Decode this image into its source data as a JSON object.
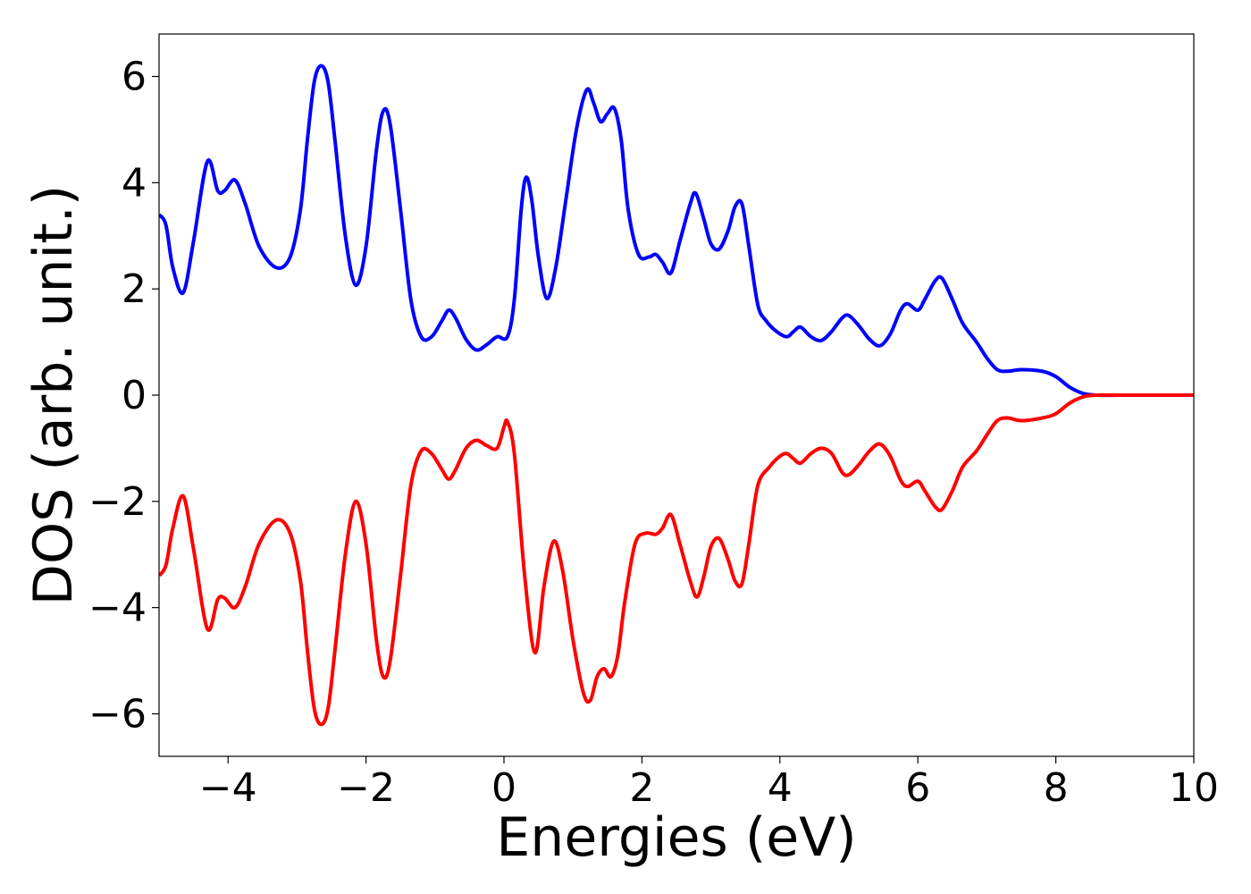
{
  "chart_data": {
    "type": "line",
    "title": "",
    "xlabel": "Energies (eV)",
    "ylabel": "DOS (arb. unit.)",
    "xlim": [
      -5,
      10
    ],
    "ylim": [
      -6.8,
      6.8
    ],
    "grid": false,
    "legend": "none",
    "x_ticks": [
      -4,
      -2,
      0,
      2,
      4,
      6,
      8,
      10
    ],
    "x_tick_labels": [
      "−4",
      "−2",
      "0",
      "2",
      "4",
      "6",
      "8",
      "10"
    ],
    "y_ticks": [
      -6,
      -4,
      -2,
      0,
      2,
      4,
      6
    ],
    "y_tick_labels": [
      "−6",
      "−4",
      "−2",
      "0",
      "2",
      "4",
      "6"
    ],
    "series": [
      {
        "color": "#0000ff",
        "points": [
          [
            -5.0,
            3.4
          ],
          [
            -4.9,
            3.2
          ],
          [
            -4.8,
            2.4
          ],
          [
            -4.65,
            1.93
          ],
          [
            -4.5,
            2.9
          ],
          [
            -4.3,
            4.4
          ],
          [
            -4.15,
            3.85
          ],
          [
            -4.05,
            3.85
          ],
          [
            -3.9,
            4.05
          ],
          [
            -3.75,
            3.6
          ],
          [
            -3.55,
            2.8
          ],
          [
            -3.3,
            2.4
          ],
          [
            -3.1,
            2.6
          ],
          [
            -2.95,
            3.5
          ],
          [
            -2.85,
            4.8
          ],
          [
            -2.75,
            5.9
          ],
          [
            -2.65,
            6.2
          ],
          [
            -2.55,
            5.9
          ],
          [
            -2.45,
            4.8
          ],
          [
            -2.3,
            3.0
          ],
          [
            -2.15,
            2.07
          ],
          [
            -2.0,
            2.8
          ],
          [
            -1.85,
            4.6
          ],
          [
            -1.75,
            5.35
          ],
          [
            -1.65,
            5.1
          ],
          [
            -1.5,
            3.5
          ],
          [
            -1.35,
            1.8
          ],
          [
            -1.2,
            1.1
          ],
          [
            -1.05,
            1.1
          ],
          [
            -0.9,
            1.4
          ],
          [
            -0.8,
            1.6
          ],
          [
            -0.7,
            1.45
          ],
          [
            -0.55,
            1.05
          ],
          [
            -0.4,
            0.85
          ],
          [
            -0.25,
            0.95
          ],
          [
            -0.1,
            1.1
          ],
          [
            0.05,
            1.1
          ],
          [
            0.15,
            1.8
          ],
          [
            0.25,
            3.5
          ],
          [
            0.32,
            4.1
          ],
          [
            0.4,
            3.7
          ],
          [
            0.5,
            2.6
          ],
          [
            0.62,
            1.82
          ],
          [
            0.75,
            2.4
          ],
          [
            0.9,
            3.7
          ],
          [
            1.05,
            5.0
          ],
          [
            1.2,
            5.75
          ],
          [
            1.3,
            5.5
          ],
          [
            1.4,
            5.15
          ],
          [
            1.5,
            5.3
          ],
          [
            1.6,
            5.4
          ],
          [
            1.7,
            4.8
          ],
          [
            1.8,
            3.5
          ],
          [
            1.95,
            2.65
          ],
          [
            2.1,
            2.6
          ],
          [
            2.2,
            2.65
          ],
          [
            2.3,
            2.5
          ],
          [
            2.42,
            2.3
          ],
          [
            2.55,
            2.9
          ],
          [
            2.7,
            3.6
          ],
          [
            2.78,
            3.8
          ],
          [
            2.9,
            3.3
          ],
          [
            3.0,
            2.85
          ],
          [
            3.12,
            2.75
          ],
          [
            3.25,
            3.1
          ],
          [
            3.35,
            3.55
          ],
          [
            3.45,
            3.6
          ],
          [
            3.55,
            2.8
          ],
          [
            3.68,
            1.7
          ],
          [
            3.8,
            1.4
          ],
          [
            3.95,
            1.2
          ],
          [
            4.1,
            1.1
          ],
          [
            4.2,
            1.2
          ],
          [
            4.3,
            1.28
          ],
          [
            4.45,
            1.1
          ],
          [
            4.6,
            1.03
          ],
          [
            4.75,
            1.2
          ],
          [
            4.9,
            1.45
          ],
          [
            5.0,
            1.5
          ],
          [
            5.15,
            1.3
          ],
          [
            5.3,
            1.05
          ],
          [
            5.45,
            0.93
          ],
          [
            5.6,
            1.15
          ],
          [
            5.75,
            1.6
          ],
          [
            5.85,
            1.72
          ],
          [
            6.0,
            1.6
          ],
          [
            6.1,
            1.8
          ],
          [
            6.25,
            2.15
          ],
          [
            6.35,
            2.2
          ],
          [
            6.5,
            1.8
          ],
          [
            6.65,
            1.35
          ],
          [
            6.85,
            1.0
          ],
          [
            7.0,
            0.7
          ],
          [
            7.15,
            0.48
          ],
          [
            7.3,
            0.45
          ],
          [
            7.5,
            0.48
          ],
          [
            7.8,
            0.45
          ],
          [
            8.0,
            0.35
          ],
          [
            8.2,
            0.15
          ],
          [
            8.4,
            0.03
          ],
          [
            8.6,
            0.0
          ],
          [
            9.0,
            0.0
          ],
          [
            10.0,
            0.0
          ]
        ]
      },
      {
        "color": "#ff0000",
        "points": [
          [
            -5.0,
            -3.4
          ],
          [
            -4.9,
            -3.2
          ],
          [
            -4.8,
            -2.5
          ],
          [
            -4.65,
            -1.9
          ],
          [
            -4.5,
            -2.9
          ],
          [
            -4.3,
            -4.4
          ],
          [
            -4.15,
            -3.85
          ],
          [
            -4.05,
            -3.82
          ],
          [
            -3.9,
            -4.0
          ],
          [
            -3.75,
            -3.6
          ],
          [
            -3.55,
            -2.8
          ],
          [
            -3.3,
            -2.35
          ],
          [
            -3.1,
            -2.6
          ],
          [
            -2.95,
            -3.5
          ],
          [
            -2.85,
            -4.8
          ],
          [
            -2.75,
            -5.9
          ],
          [
            -2.65,
            -6.2
          ],
          [
            -2.55,
            -5.9
          ],
          [
            -2.45,
            -4.8
          ],
          [
            -2.3,
            -3.0
          ],
          [
            -2.15,
            -2.0
          ],
          [
            -2.0,
            -2.8
          ],
          [
            -1.85,
            -4.6
          ],
          [
            -1.75,
            -5.3
          ],
          [
            -1.65,
            -5.0
          ],
          [
            -1.5,
            -3.4
          ],
          [
            -1.35,
            -1.7
          ],
          [
            -1.2,
            -1.05
          ],
          [
            -1.05,
            -1.1
          ],
          [
            -0.9,
            -1.4
          ],
          [
            -0.8,
            -1.58
          ],
          [
            -0.7,
            -1.4
          ],
          [
            -0.55,
            -1.0
          ],
          [
            -0.4,
            -0.85
          ],
          [
            -0.25,
            -0.95
          ],
          [
            -0.1,
            -1.0
          ],
          [
            0.0,
            -0.6
          ],
          [
            0.05,
            -0.5
          ],
          [
            0.15,
            -1.1
          ],
          [
            0.3,
            -3.4
          ],
          [
            0.45,
            -4.85
          ],
          [
            0.58,
            -3.6
          ],
          [
            0.72,
            -2.75
          ],
          [
            0.85,
            -3.3
          ],
          [
            1.0,
            -4.6
          ],
          [
            1.15,
            -5.6
          ],
          [
            1.25,
            -5.75
          ],
          [
            1.35,
            -5.3
          ],
          [
            1.45,
            -5.15
          ],
          [
            1.55,
            -5.3
          ],
          [
            1.65,
            -4.9
          ],
          [
            1.75,
            -3.9
          ],
          [
            1.9,
            -2.8
          ],
          [
            2.05,
            -2.6
          ],
          [
            2.2,
            -2.62
          ],
          [
            2.3,
            -2.5
          ],
          [
            2.42,
            -2.25
          ],
          [
            2.55,
            -2.8
          ],
          [
            2.7,
            -3.5
          ],
          [
            2.8,
            -3.8
          ],
          [
            2.9,
            -3.4
          ],
          [
            3.0,
            -2.85
          ],
          [
            3.12,
            -2.7
          ],
          [
            3.25,
            -3.1
          ],
          [
            3.35,
            -3.5
          ],
          [
            3.45,
            -3.55
          ],
          [
            3.55,
            -2.8
          ],
          [
            3.68,
            -1.7
          ],
          [
            3.85,
            -1.35
          ],
          [
            4.0,
            -1.15
          ],
          [
            4.1,
            -1.1
          ],
          [
            4.2,
            -1.2
          ],
          [
            4.3,
            -1.28
          ],
          [
            4.45,
            -1.1
          ],
          [
            4.6,
            -1.0
          ],
          [
            4.75,
            -1.1
          ],
          [
            4.9,
            -1.45
          ],
          [
            5.0,
            -1.5
          ],
          [
            5.15,
            -1.3
          ],
          [
            5.3,
            -1.05
          ],
          [
            5.45,
            -0.92
          ],
          [
            5.6,
            -1.15
          ],
          [
            5.75,
            -1.6
          ],
          [
            5.85,
            -1.72
          ],
          [
            6.0,
            -1.62
          ],
          [
            6.1,
            -1.8
          ],
          [
            6.25,
            -2.1
          ],
          [
            6.35,
            -2.15
          ],
          [
            6.5,
            -1.8
          ],
          [
            6.65,
            -1.35
          ],
          [
            6.85,
            -1.05
          ],
          [
            7.0,
            -0.75
          ],
          [
            7.15,
            -0.48
          ],
          [
            7.3,
            -0.43
          ],
          [
            7.5,
            -0.48
          ],
          [
            7.8,
            -0.43
          ],
          [
            8.0,
            -0.35
          ],
          [
            8.2,
            -0.15
          ],
          [
            8.4,
            -0.03
          ],
          [
            8.6,
            0.0
          ],
          [
            9.0,
            0.0
          ],
          [
            10.0,
            0.0
          ]
        ]
      }
    ]
  }
}
